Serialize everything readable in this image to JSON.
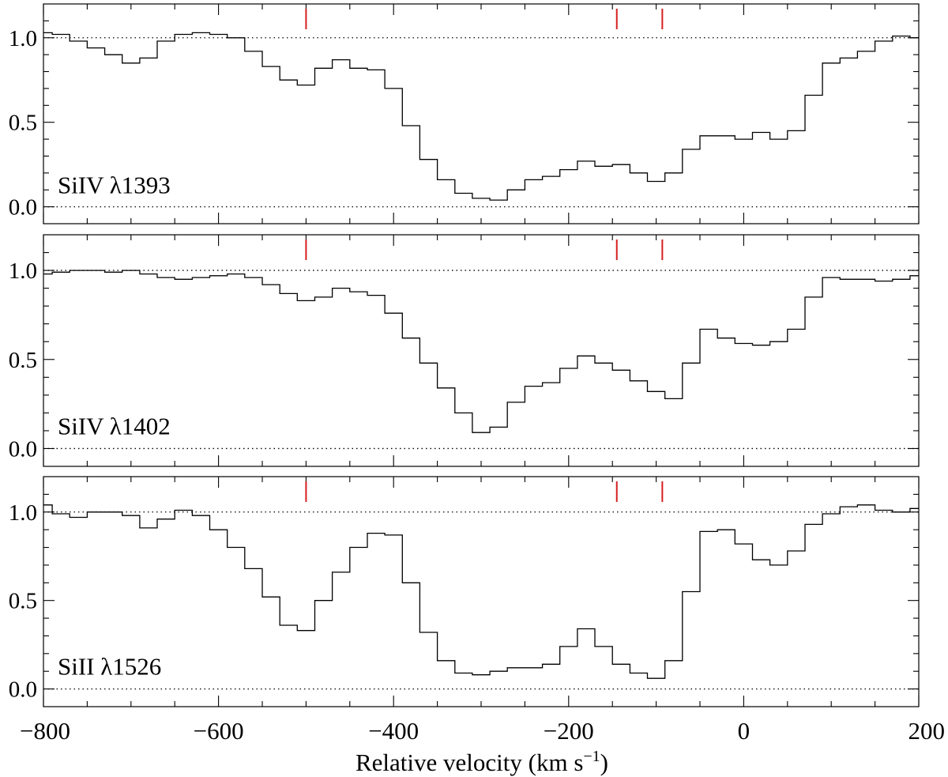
{
  "chart_data": [
    {
      "type": "line",
      "label": "SiIV λ1393",
      "xlim": [
        -800,
        200
      ],
      "ylim": [
        -0.1,
        1.2
      ],
      "yticks": [
        0.0,
        0.5,
        1.0
      ],
      "ytick_labels": [
        "0.0",
        "0.5",
        "1.0"
      ],
      "reference_lines": [
        0.0,
        1.0
      ],
      "markers_x": [
        -500,
        -145,
        -93
      ],
      "marker_color": "#d62020",
      "x": [
        -800,
        -780,
        -760,
        -740,
        -720,
        -700,
        -680,
        -660,
        -640,
        -620,
        -600,
        -580,
        -560,
        -540,
        -520,
        -500,
        -480,
        -460,
        -440,
        -420,
        -400,
        -380,
        -360,
        -340,
        -320,
        -300,
        -280,
        -260,
        -240,
        -220,
        -200,
        -180,
        -160,
        -140,
        -120,
        -100,
        -80,
        -60,
        -40,
        -20,
        0,
        20,
        40,
        60,
        80,
        100,
        120,
        140,
        160,
        180,
        200
      ],
      "y": [
        1.03,
        1.02,
        0.98,
        0.94,
        0.9,
        0.85,
        0.88,
        0.98,
        1.02,
        1.03,
        1.02,
        1.0,
        0.92,
        0.83,
        0.75,
        0.72,
        0.82,
        0.87,
        0.82,
        0.81,
        0.7,
        0.48,
        0.28,
        0.16,
        0.08,
        0.05,
        0.04,
        0.1,
        0.16,
        0.18,
        0.22,
        0.27,
        0.24,
        0.25,
        0.2,
        0.15,
        0.2,
        0.34,
        0.42,
        0.42,
        0.4,
        0.44,
        0.4,
        0.45,
        0.66,
        0.85,
        0.88,
        0.92,
        0.98,
        1.01,
        1.0
      ]
    },
    {
      "type": "line",
      "label": "SiIV λ1402",
      "xlim": [
        -800,
        200
      ],
      "ylim": [
        -0.1,
        1.2
      ],
      "yticks": [
        0.0,
        0.5,
        1.0
      ],
      "ytick_labels": [
        "0.0",
        "0.5",
        "1.0"
      ],
      "reference_lines": [
        0.0,
        1.0
      ],
      "markers_x": [
        -500,
        -145,
        -93
      ],
      "marker_color": "#d62020",
      "x": [
        -800,
        -780,
        -760,
        -740,
        -720,
        -700,
        -680,
        -660,
        -640,
        -620,
        -600,
        -580,
        -560,
        -540,
        -520,
        -500,
        -480,
        -460,
        -440,
        -420,
        -400,
        -380,
        -360,
        -340,
        -320,
        -300,
        -280,
        -260,
        -240,
        -220,
        -200,
        -180,
        -160,
        -140,
        -120,
        -100,
        -80,
        -60,
        -40,
        -20,
        0,
        20,
        40,
        60,
        80,
        100,
        120,
        140,
        160,
        180,
        200
      ],
      "y": [
        0.98,
        0.99,
        1.0,
        1.0,
        0.99,
        1.0,
        0.98,
        0.96,
        0.95,
        0.96,
        0.97,
        0.98,
        0.96,
        0.92,
        0.87,
        0.83,
        0.85,
        0.9,
        0.88,
        0.86,
        0.76,
        0.62,
        0.48,
        0.34,
        0.2,
        0.09,
        0.12,
        0.26,
        0.35,
        0.37,
        0.45,
        0.52,
        0.48,
        0.44,
        0.38,
        0.32,
        0.28,
        0.48,
        0.67,
        0.62,
        0.59,
        0.58,
        0.6,
        0.67,
        0.85,
        0.96,
        0.95,
        0.95,
        0.94,
        0.95,
        0.97
      ]
    },
    {
      "type": "line",
      "label": "SiII λ1526",
      "xlim": [
        -800,
        200
      ],
      "ylim": [
        -0.1,
        1.2
      ],
      "yticks": [
        0.0,
        0.5,
        1.0
      ],
      "ytick_labels": [
        "0.0",
        "0.5",
        "1.0"
      ],
      "reference_lines": [
        0.0,
        1.0
      ],
      "markers_x": [
        -500,
        -145,
        -93
      ],
      "marker_color": "#d62020",
      "x": [
        -800,
        -780,
        -760,
        -740,
        -720,
        -700,
        -680,
        -660,
        -640,
        -620,
        -600,
        -580,
        -560,
        -540,
        -520,
        -500,
        -480,
        -460,
        -440,
        -420,
        -400,
        -380,
        -360,
        -340,
        -320,
        -300,
        -280,
        -260,
        -240,
        -220,
        -200,
        -180,
        -160,
        -140,
        -120,
        -100,
        -80,
        -60,
        -40,
        -20,
        0,
        20,
        40,
        60,
        80,
        100,
        120,
        140,
        160,
        180,
        200
      ],
      "y": [
        1.04,
        0.99,
        0.97,
        1.0,
        1.0,
        0.98,
        0.91,
        0.96,
        1.01,
        0.98,
        0.9,
        0.8,
        0.68,
        0.52,
        0.36,
        0.33,
        0.5,
        0.66,
        0.8,
        0.88,
        0.87,
        0.6,
        0.32,
        0.16,
        0.09,
        0.08,
        0.1,
        0.12,
        0.12,
        0.14,
        0.24,
        0.34,
        0.24,
        0.14,
        0.09,
        0.06,
        0.16,
        0.55,
        0.89,
        0.9,
        0.82,
        0.73,
        0.7,
        0.78,
        0.93,
        0.99,
        1.03,
        1.04,
        1.01,
        1.0,
        1.02
      ]
    }
  ],
  "xaxis": {
    "ticks": [
      -800,
      -600,
      -400,
      -200,
      0,
      200
    ],
    "tick_labels": [
      "−800",
      "−600",
      "−400",
      "−200",
      "0",
      "200"
    ],
    "label_main": "Relative velocity (km s",
    "label_sup": "−1",
    "label_end": ")"
  }
}
